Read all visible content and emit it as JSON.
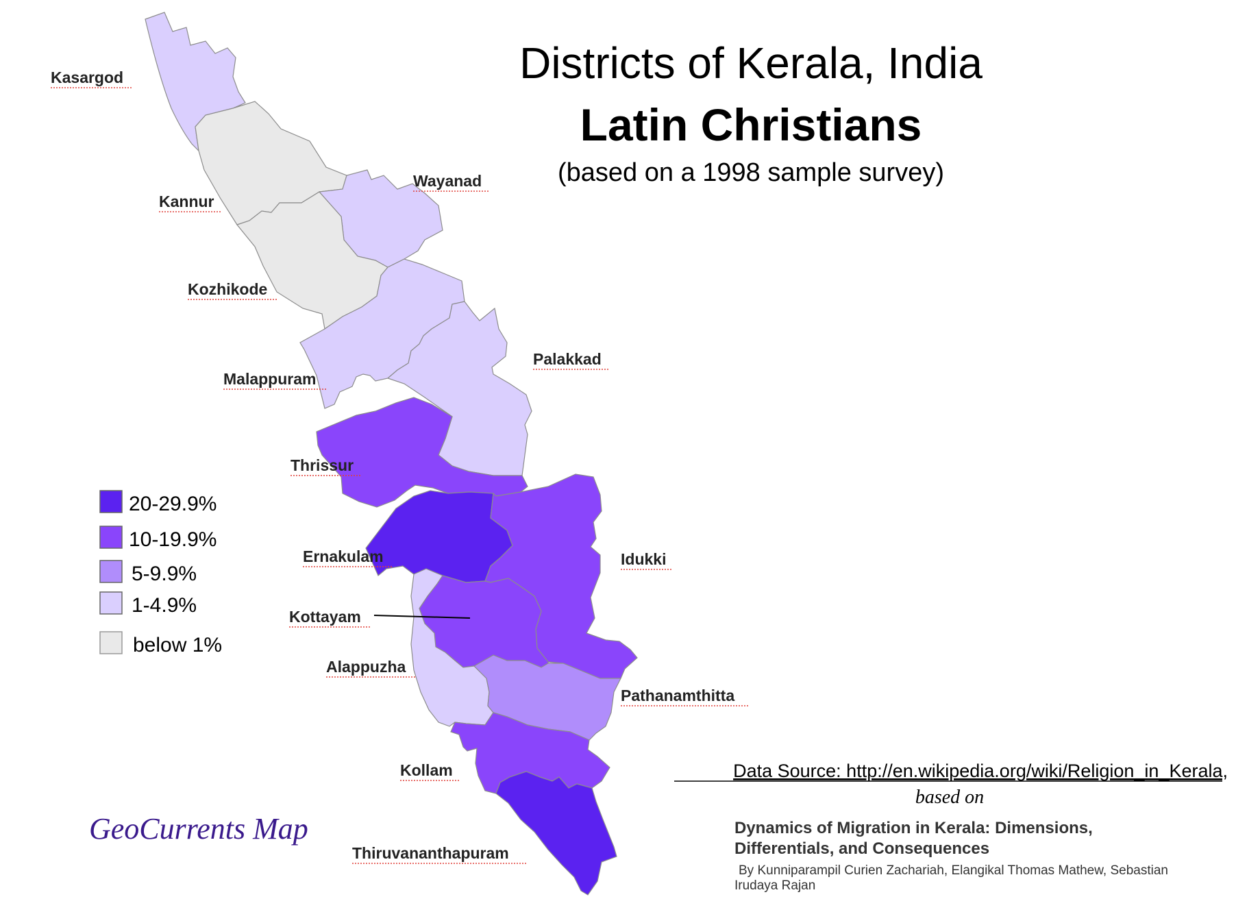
{
  "title": {
    "line1": "Districts of Kerala, India",
    "line2": "Latin Christians",
    "line3": "(based on a 1998 sample survey)"
  },
  "legend": [
    {
      "label": "20-29.9%",
      "color": "#5b22f0"
    },
    {
      "label": "10-19.9%",
      "color": "#8a45fb"
    },
    {
      "label": "5-9.9%",
      "color": "#b08dfb"
    },
    {
      "label": "1-4.9%",
      "color": "#dacffe"
    },
    {
      "label": "below 1%",
      "color": "#e9e9e9"
    }
  ],
  "districts": {
    "kasargod": {
      "name": "Kasargod",
      "category": "1-4.9%"
    },
    "kannur": {
      "name": "Kannur",
      "category": "below 1%"
    },
    "wayanad": {
      "name": "Wayanad",
      "category": "1-4.9%"
    },
    "kozhikode": {
      "name": "Kozhikode",
      "category": "below 1%"
    },
    "malappuram": {
      "name": "Malappuram",
      "category": "1-4.9%"
    },
    "palakkad": {
      "name": "Palakkad",
      "category": "1-4.9%"
    },
    "thrissur": {
      "name": "Thrissur",
      "category": "10-19.9%"
    },
    "ernakulam": {
      "name": "Ernakulam",
      "category": "20-29.9%"
    },
    "idukki": {
      "name": "Idukki",
      "category": "10-19.9%"
    },
    "kottayam": {
      "name": "Kottayam",
      "category": "10-19.9%"
    },
    "alappuzha": {
      "name": "Alappuzha",
      "category": "1-4.9%"
    },
    "pathanamthitta": {
      "name": "Pathanamthitta",
      "category": "5-9.9%"
    },
    "kollam": {
      "name": "Kollam",
      "category": "10-19.9%"
    },
    "thiruvananthapuram": {
      "name": "Thiruvananthapuram",
      "category": "20-29.9%"
    }
  },
  "source": {
    "data_source": "Data Source: http://en.wikipedia.org/wiki/Religion_in_Kerala,",
    "based_on": "based on",
    "book_line1": "Dynamics of Migration in Kerala: Dimensions,",
    "book_line2": "Differentials, and Consequences",
    "authors_line1": "By Kunniparampil Curien Zachariah, Elangikal Thomas Mathew, Sebastian",
    "authors_line2": "Irudaya Rajan"
  },
  "brand": "GeoCurrents Map"
}
